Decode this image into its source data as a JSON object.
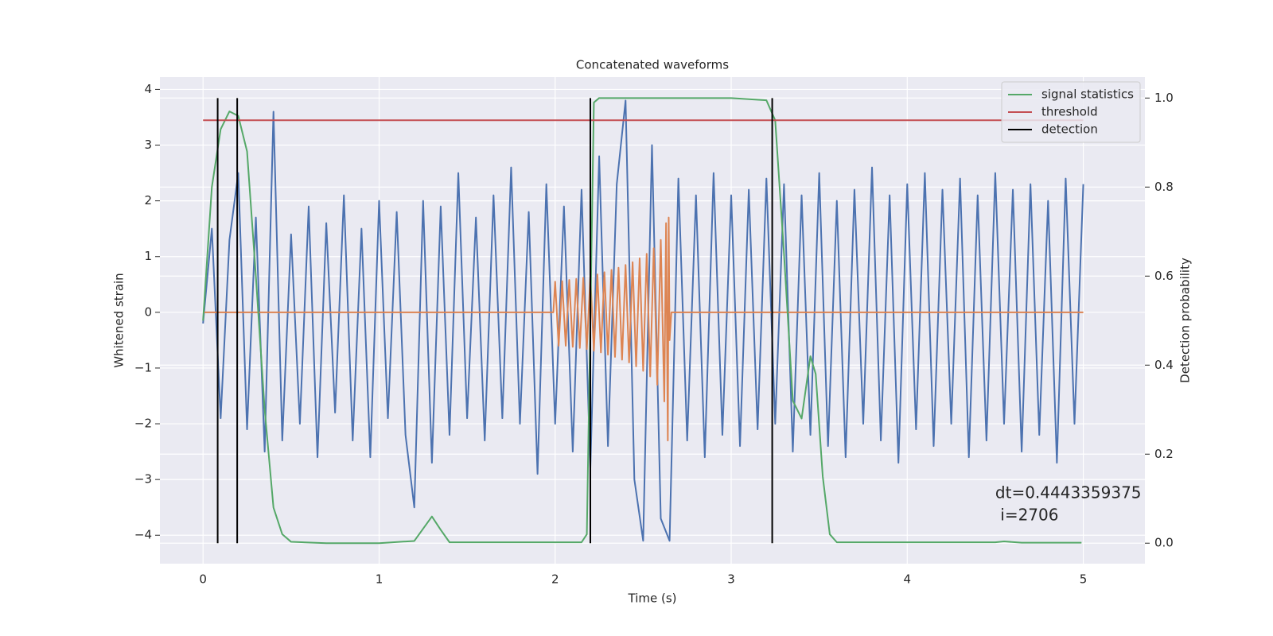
{
  "chart_data": {
    "type": "line",
    "title": "Concatenated waveforms",
    "xlabel": "Time (s)",
    "ylabel": "Whitened strain",
    "y2label": "Detection probability",
    "xlim": [
      -0.245,
      5.35
    ],
    "ylim": [
      -4.51,
      4.22
    ],
    "y2lim": [
      -0.046,
      1.047
    ],
    "xticks": [
      0,
      1,
      2,
      3,
      4,
      5
    ],
    "yticks": [
      {
        "value": -4,
        "label": "−4"
      },
      {
        "value": -3,
        "label": "−3"
      },
      {
        "value": -2,
        "label": "−2"
      },
      {
        "value": -1,
        "label": "−1"
      },
      0,
      1,
      2,
      3,
      4
    ],
    "y2ticks": [
      {
        "value": 0,
        "label": "0.0"
      },
      0.2,
      0.4,
      0.6,
      0.8,
      {
        "value": 1,
        "label": "1.0"
      }
    ],
    "grid": true,
    "background": "#eaeaf2",
    "legend": "upper right",
    "series": [
      {
        "color": "#4c72b0",
        "x": [
          0,
          0.05,
          0.1,
          0.15,
          0.2,
          0.25,
          0.3,
          0.35,
          0.4,
          0.45,
          0.5,
          0.55,
          0.6,
          0.65,
          0.7,
          0.75,
          0.8,
          0.85,
          0.9,
          0.95,
          1.0,
          1.05,
          1.1,
          1.15,
          1.2,
          1.25,
          1.3,
          1.35,
          1.4,
          1.45,
          1.5,
          1.55,
          1.6,
          1.65,
          1.7,
          1.75,
          1.8,
          1.85,
          1.9,
          1.95,
          2.0,
          2.05,
          2.1,
          2.15,
          2.2,
          2.25,
          2.3,
          2.35,
          2.4,
          2.45,
          2.5,
          2.55,
          2.6,
          2.65,
          2.7,
          2.75,
          2.8,
          2.85,
          2.9,
          2.95,
          3.0,
          3.05,
          3.1,
          3.15,
          3.2,
          3.25,
          3.3,
          3.35,
          3.4,
          3.45,
          3.5,
          3.55,
          3.6,
          3.65,
          3.7,
          3.75,
          3.8,
          3.85,
          3.9,
          3.95,
          4.0,
          4.05,
          4.1,
          4.15,
          4.2,
          4.25,
          4.3,
          4.35,
          4.4,
          4.45,
          4.5,
          4.55,
          4.6,
          4.65,
          4.7,
          4.75,
          4.8,
          4.85,
          4.9,
          4.95,
          5.0
        ],
        "values": [
          -0.2,
          1.5,
          -1.9,
          1.3,
          2.5,
          -2.1,
          1.7,
          -2.5,
          3.6,
          -2.3,
          1.4,
          -2.0,
          1.9,
          -2.6,
          1.6,
          -1.8,
          2.1,
          -2.3,
          1.5,
          -2.6,
          2.0,
          -1.9,
          1.8,
          -2.2,
          -3.5,
          2.0,
          -2.7,
          1.9,
          -2.2,
          2.5,
          -1.9,
          1.7,
          -2.3,
          2.1,
          -1.9,
          2.6,
          -2.0,
          1.8,
          -2.9,
          2.3,
          -2.0,
          1.9,
          -2.5,
          2.2,
          -2.8,
          2.8,
          -2.4,
          2.3,
          3.8,
          -3.0,
          -4.1,
          3.0,
          -3.7,
          -4.1,
          2.4,
          -2.3,
          2.1,
          -2.6,
          2.5,
          -2.2,
          2.1,
          -2.4,
          2.2,
          -2.1,
          2.4,
          -2.0,
          2.3,
          -2.5,
          2.1,
          -2.2,
          2.5,
          -2.4,
          2.0,
          -2.6,
          2.2,
          -2.0,
          2.6,
          -2.3,
          2.1,
          -2.7,
          2.3,
          -2.1,
          2.5,
          -2.4,
          2.2,
          -2.0,
          2.4,
          -2.6,
          2.1,
          -2.3,
          2.5,
          -2.0,
          2.2,
          -2.5,
          2.3,
          -2.2,
          2.0,
          -2.7,
          2.4,
          -2.0,
          2.3
        ]
      },
      {
        "color": "#dd8452",
        "x": [
          0,
          1.99,
          2.0,
          2.02,
          2.04,
          2.06,
          2.08,
          2.1,
          2.12,
          2.14,
          2.16,
          2.18,
          2.2,
          2.22,
          2.24,
          2.26,
          2.28,
          2.3,
          2.32,
          2.34,
          2.36,
          2.38,
          2.4,
          2.42,
          2.44,
          2.46,
          2.48,
          2.5,
          2.52,
          2.54,
          2.56,
          2.58,
          2.6,
          2.62,
          2.63,
          2.64,
          2.645,
          2.65,
          2.66,
          5.0
        ],
        "values": [
          0,
          0,
          0.55,
          -0.6,
          0.56,
          -0.6,
          0.58,
          -0.62,
          0.6,
          -0.64,
          0.62,
          -0.66,
          0.65,
          -0.69,
          0.68,
          -0.72,
          0.72,
          -0.76,
          0.76,
          -0.8,
          0.8,
          -0.85,
          0.85,
          -0.9,
          0.9,
          -0.97,
          0.97,
          -1.05,
          1.05,
          -1.15,
          1.15,
          -1.3,
          1.3,
          -1.6,
          1.6,
          -2.3,
          1.7,
          -0.5,
          0,
          0
        ]
      },
      {
        "name": "signal statistics",
        "color": "#55a868",
        "axis": "y2",
        "x": [
          0,
          0.05,
          0.1,
          0.15,
          0.2,
          0.25,
          0.3,
          0.35,
          0.4,
          0.45,
          0.5,
          0.7,
          1.0,
          1.2,
          1.3,
          1.35,
          1.4,
          1.8,
          2.15,
          2.18,
          2.2,
          2.22,
          2.25,
          3.0,
          3.2,
          3.25,
          3.3,
          3.35,
          3.4,
          3.45,
          3.48,
          3.52,
          3.56,
          3.6,
          4.5,
          4.55,
          4.65,
          4.99
        ],
        "values": [
          0.5,
          0.8,
          0.93,
          0.97,
          0.96,
          0.88,
          0.6,
          0.3,
          0.08,
          0.02,
          0.003,
          0.0,
          0.0,
          0.005,
          0.06,
          0.03,
          0.002,
          0.002,
          0.002,
          0.02,
          0.5,
          0.99,
          1.0,
          1.0,
          0.995,
          0.95,
          0.65,
          0.32,
          0.28,
          0.42,
          0.38,
          0.15,
          0.02,
          0.002,
          0.002,
          0.004,
          0.001,
          0.001
        ]
      },
      {
        "name": "threshold",
        "color": "#c44e52",
        "axis": "y2",
        "x": [
          0,
          5
        ],
        "values": [
          0.95,
          0.95
        ]
      },
      {
        "name": "detection",
        "color": "#000000",
        "axis": "y2",
        "vlines": [
          0.083,
          0.194,
          2.2,
          3.233
        ],
        "span": [
          0,
          1
        ]
      }
    ],
    "annotation": {
      "lines": [
        "dt=0.4443359375",
        " i=2706"
      ],
      "x": 4.5,
      "y": -3.25
    }
  }
}
